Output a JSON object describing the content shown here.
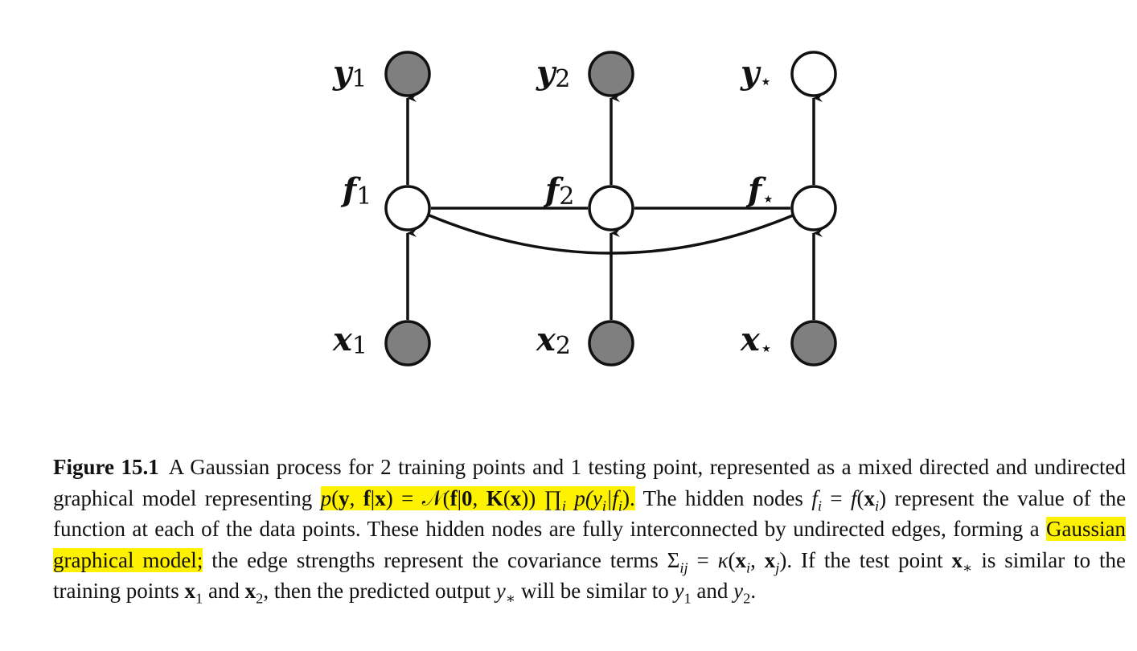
{
  "nodes": {
    "y1": {
      "name": "y",
      "sub": "1"
    },
    "y2": {
      "name": "y",
      "sub": "2"
    },
    "ystar": {
      "name": "y",
      "sub": "⋆"
    },
    "f1": {
      "name": "f",
      "sub": "1"
    },
    "f2": {
      "name": "f",
      "sub": "2"
    },
    "fstar": {
      "name": "f",
      "sub": "⋆"
    },
    "x1": {
      "name": "x",
      "sub": "1"
    },
    "x2": {
      "name": "x",
      "sub": "2"
    },
    "xstar": {
      "name": "x",
      "sub": "⋆"
    }
  },
  "colors": {
    "observed_fill": "#7f7f7f",
    "hidden_fill": "#ffffff",
    "stroke": "#111111",
    "highlight": "#fff200"
  },
  "caption": {
    "figure_label": "Figure 15.1",
    "t1": "A Gaussian process for 2 training points and 1 testing point, represented as a mixed directed and undirected graphical model representing ",
    "h1_p": "p",
    "h1_paren": "(",
    "h1_y": "y",
    "h1_comma": ", ",
    "h1_f": "f",
    "h1_bar": "|",
    "h1_x": "x",
    "h1_eq": ") = ",
    "h1_N": "𝒩",
    "h1_open": "(",
    "h1_f2": "f",
    "h1_bar2": "|",
    "h1_zero": "0",
    "h1_comma2": ", ",
    "h1_K": "K",
    "h1_open2": "(",
    "h1_x2": "x",
    "h1_close": ")) ∏",
    "h1_i": "i",
    "h1_p2": " p",
    "h1_rest": "(y",
    "h1_isub": "i",
    "h1_bar3": "|f",
    "h1_isub2": "i",
    "h1_end": ").",
    "t2": " The hidden nodes ",
    "fi_f": "f",
    "fi_i": "i",
    "fi_eq": " = ",
    "fi_f2": "f",
    "fi_open": "(",
    "fi_x": "x",
    "fi_i2": "i",
    "fi_close": ")",
    "t3": " represent the value of the function at each of the data points. These hidden nodes are fully interconnected by undirected edges, forming a ",
    "h2": "Gaussian graphical model;",
    "t4": " the edge strengths represent the covariance terms ",
    "sigma": "Σ",
    "sigma_sub": "ij",
    "sigma_eq": " = ",
    "kappa": "κ",
    "kappa_open": "(",
    "kx1": "x",
    "kx1_sub": "i",
    "k_comma": ", ",
    "kx2": "x",
    "kx2_sub": "j",
    "k_close": ").",
    "t5": " If the test point ",
    "xs": "x",
    "xs_sub": "∗",
    "t6": " is similar to the training points ",
    "x1": "x",
    "x1_sub": "1",
    "t7": " and ",
    "x2": "x",
    "x2_sub": "2",
    "t8": ", then the predicted output ",
    "ys": "y",
    "ys_sub": "∗",
    "t9": " will be similar to ",
    "y1": "y",
    "y1_sub": "1",
    "t10": " and ",
    "y2": "y",
    "y2_sub": "2",
    "t11": "."
  }
}
